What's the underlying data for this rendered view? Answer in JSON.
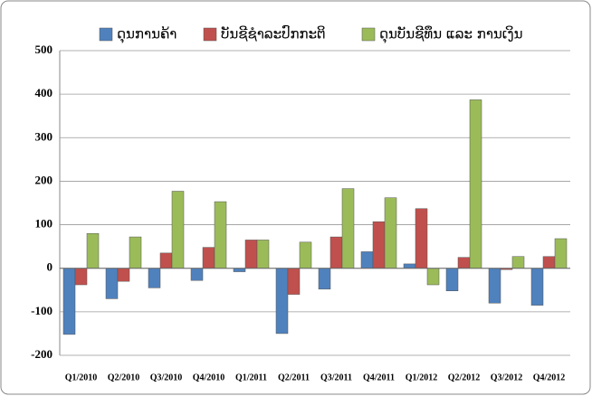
{
  "chart_data": {
    "type": "bar",
    "categories": [
      "Q1/2010",
      "Q2/2010",
      "Q3/2010",
      "Q4/2010",
      "Q1/2011",
      "Q2/2011",
      "Q3/2011",
      "Q4/2011",
      "Q1/2012",
      "Q2/2012",
      "Q3/2012",
      "Q4/2012"
    ],
    "series": [
      {
        "name": "ດຸນການຄ້າ",
        "color": "#4f81bd",
        "values": [
          -152,
          -70,
          -45,
          -28,
          -8,
          -150,
          -48,
          38,
          10,
          -52,
          -80,
          -85
        ]
      },
      {
        "name": "ບັນຊີຊໍາລະປົກກະຕິ",
        "color": "#c0504d",
        "values": [
          -38,
          -30,
          35,
          48,
          65,
          -60,
          72,
          107,
          137,
          25,
          -3,
          27
        ]
      },
      {
        "name": "ດຸນບັນຊີທຶນ ແລະ ການເງິນ",
        "color": "#9bbb59",
        "values": [
          80,
          72,
          177,
          153,
          65,
          60,
          183,
          162,
          -38,
          387,
          27,
          68
        ]
      }
    ],
    "ylim": [
      -200,
      500
    ],
    "yticks": [
      -200,
      -100,
      0,
      100,
      200,
      300,
      400,
      500
    ],
    "grid": true,
    "legend": "top"
  }
}
